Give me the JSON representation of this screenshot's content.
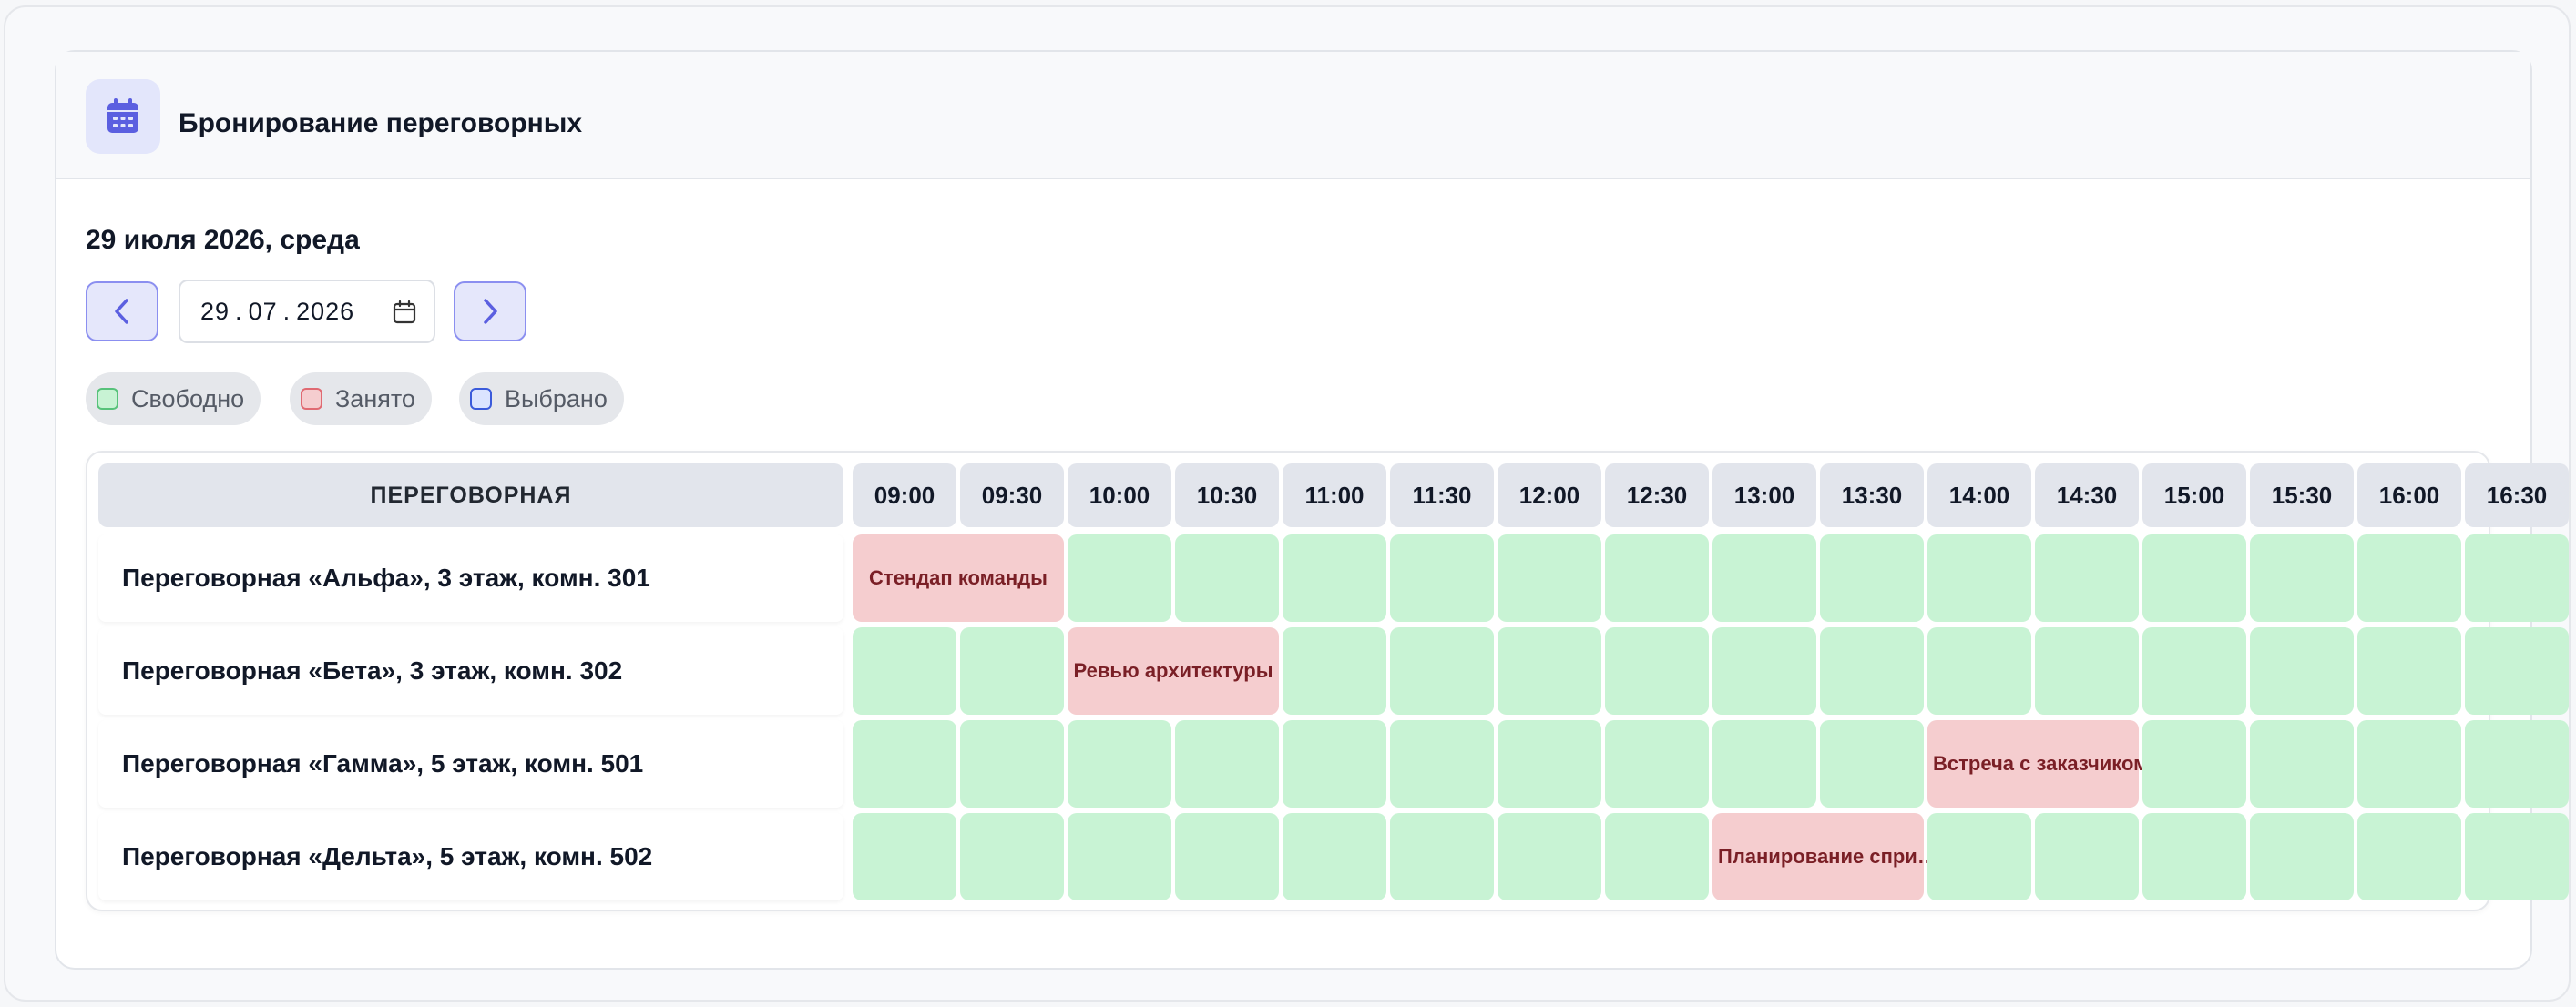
{
  "header": {
    "title": "Бронирование переговорных",
    "icon": "calendar-icon",
    "accent": "#5b5fe0"
  },
  "date_heading": "29 июля 2026, среда",
  "date_picker": {
    "day": "29",
    "month": "07",
    "year": "2026",
    "prev_icon": "chevron-left-icon",
    "next_icon": "chevron-right-icon"
  },
  "legend": [
    {
      "label": "Свободно",
      "color": "#c8f3d4",
      "border": "#57c27a"
    },
    {
      "label": "Занято",
      "color": "#f5cdcf",
      "border": "#e06a72"
    },
    {
      "label": "Выбрано",
      "color": "#dbe4ff",
      "border": "#3b5bdb"
    }
  ],
  "grid": {
    "room_column_header": "ПЕРЕГОВОРНАЯ",
    "slots": [
      "09:00",
      "09:30",
      "10:00",
      "10:30",
      "11:00",
      "11:30",
      "12:00",
      "12:30",
      "13:00",
      "13:30",
      "14:00",
      "14:30",
      "15:00",
      "15:30",
      "16:00",
      "16:30"
    ],
    "rooms": [
      {
        "name": "Переговорная «Альфа», 3 этаж, комн. 301",
        "bookings": [
          {
            "start": 0,
            "span": 2,
            "title": "Стендап команды"
          }
        ]
      },
      {
        "name": "Переговорная «Бета», 3 этаж, комн. 302",
        "bookings": [
          {
            "start": 2,
            "span": 2,
            "title": "Ревью архитектуры"
          }
        ]
      },
      {
        "name": "Переговорная «Гамма», 5 этаж, комн. 501",
        "bookings": [
          {
            "start": 10,
            "span": 2,
            "title": "Встреча с заказчиком"
          }
        ]
      },
      {
        "name": "Переговорная «Дельта», 5 этаж, комн. 502",
        "bookings": [
          {
            "start": 8,
            "span": 2,
            "title": "Планирование спри…"
          }
        ]
      }
    ]
  }
}
